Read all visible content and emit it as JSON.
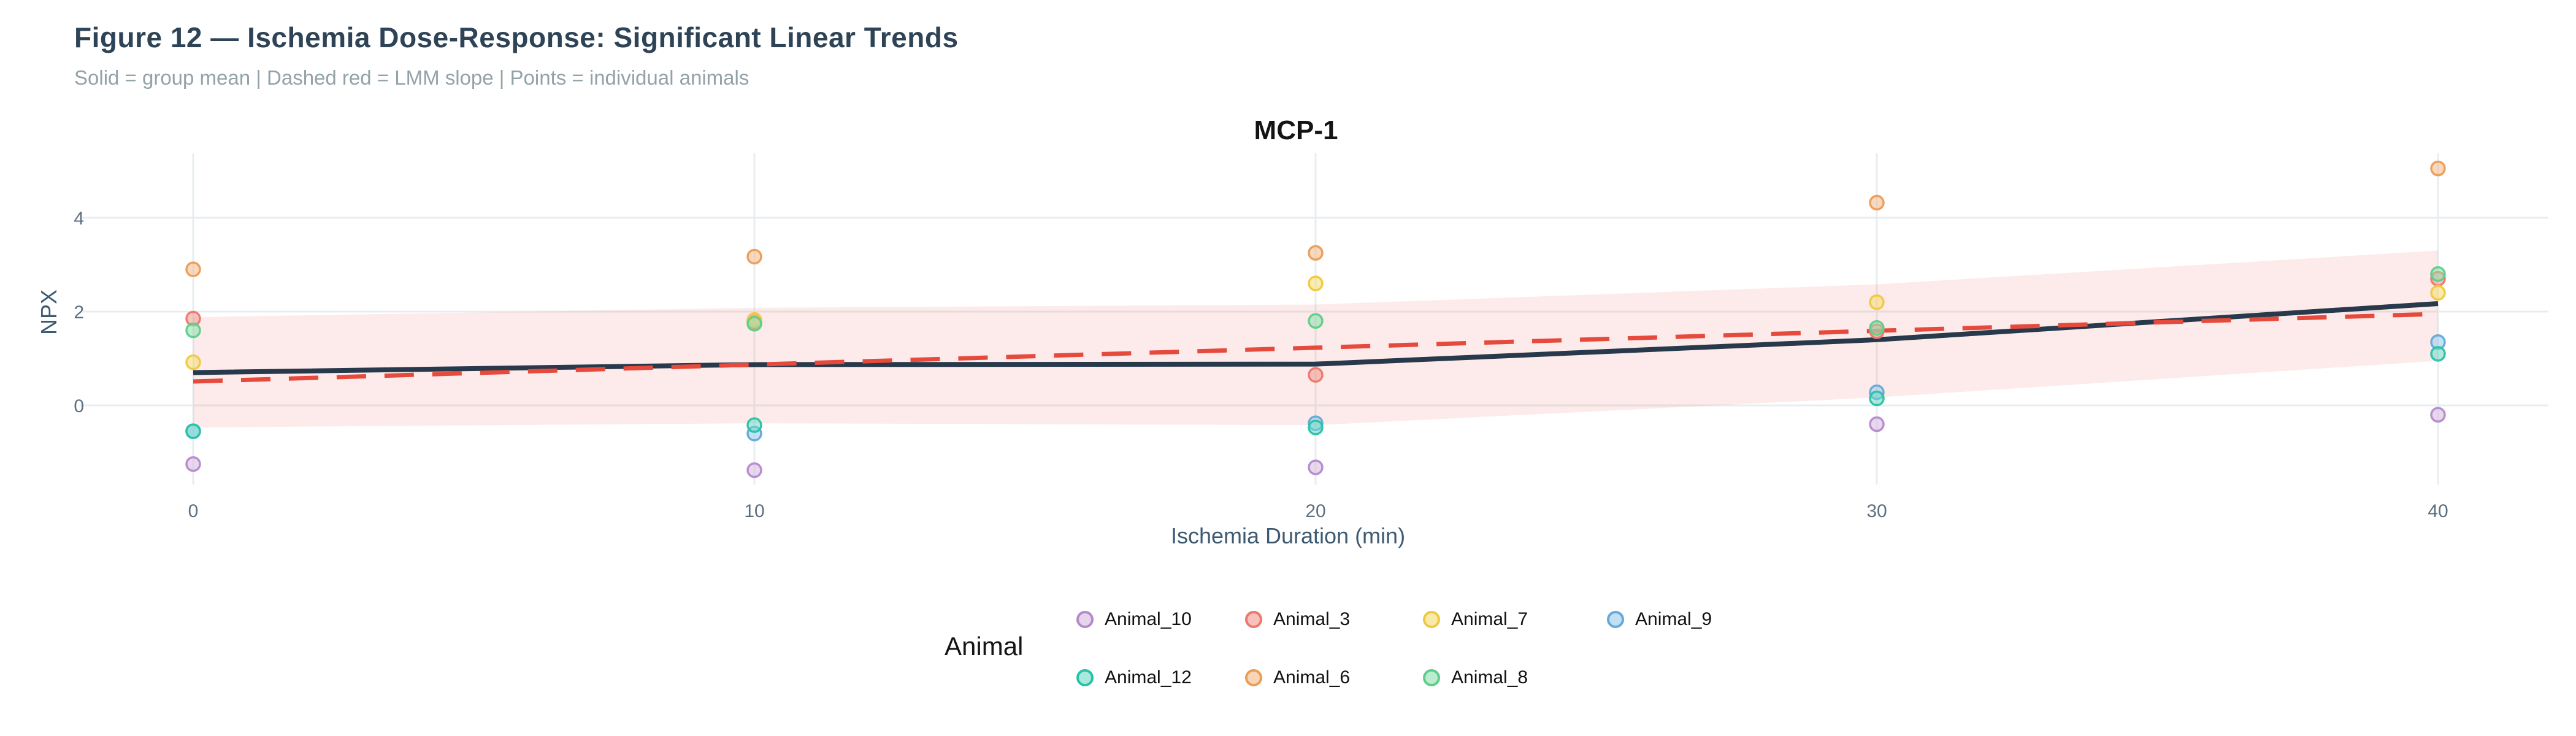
{
  "figure": {
    "title": "Figure 12 — Ischemia Dose-Response: Significant Linear Trends",
    "subtitle": "Solid = group mean | Dashed red = LMM slope | Points = individual animals"
  },
  "panel": {
    "title": "MCP-1"
  },
  "axes": {
    "x": {
      "title": "Ischemia Duration (min)",
      "tick_labels": [
        "0",
        "10",
        "20",
        "30",
        "40"
      ]
    },
    "y": {
      "title": "NPX",
      "tick_labels": [
        "0",
        "2",
        "4"
      ]
    }
  },
  "legend": {
    "title": "Animal",
    "rows": [
      {
        "items": [
          {
            "label": "Animal_10"
          },
          {
            "label": "Animal_3"
          },
          {
            "label": "Animal_7"
          },
          {
            "label": "Animal_9"
          }
        ]
      },
      {
        "items": [
          {
            "label": "Animal_12"
          },
          {
            "label": "Animal_6"
          },
          {
            "label": "Animal_8"
          }
        ]
      }
    ]
  },
  "colors": {
    "figure_title": "#2e4456",
    "subtitle": "#93a1a8",
    "panel_title": "#141414",
    "axis_text": "#5c6f80",
    "axis_title": "#3d5a73",
    "gridline": "#e8edf0",
    "mean_line": "#27394b",
    "lmm_line": "#e64a3c",
    "ribbon": "rgba(231,76,60,0.11)"
  },
  "chart_data": {
    "type": "scatter",
    "title": "MCP-1",
    "xlabel": "Ischemia Duration (min)",
    "ylabel": "NPX",
    "x": [
      0,
      10,
      20,
      30,
      40
    ],
    "x_ticks": [
      0,
      10,
      20,
      30,
      40
    ],
    "y_ticks": [
      0,
      2,
      4
    ],
    "xlim": [
      -2,
      42
    ],
    "ylim": [
      -1.7,
      5.4
    ],
    "grid": true,
    "legend_position": "bottom",
    "point_style": {
      "radius": 11,
      "fill_opacity": 0.55,
      "stroke_width": 3.5
    },
    "series": [
      {
        "name": "Animal_10",
        "fill": "#d5b8e0",
        "stroke": "#b589cc",
        "values": [
          -1.25,
          -1.38,
          -1.32,
          -0.4,
          -0.2
        ]
      },
      {
        "name": "Animal_3",
        "fill": "#f3988e",
        "stroke": "#ee776c",
        "values": [
          1.85,
          1.78,
          0.65,
          1.58,
          2.7
        ]
      },
      {
        "name": "Animal_6",
        "fill": "#f3b987",
        "stroke": "#eb9c57",
        "values": [
          2.9,
          3.17,
          3.25,
          4.32,
          5.05
        ]
      },
      {
        "name": "Animal_7",
        "fill": "#f6dc6f",
        "stroke": "#efc93f",
        "values": [
          0.92,
          1.82,
          2.6,
          2.2,
          2.4
        ]
      },
      {
        "name": "Animal_8",
        "fill": "#8ce0ac",
        "stroke": "#5ecd8b",
        "values": [
          1.6,
          1.74,
          1.8,
          1.65,
          2.8
        ]
      },
      {
        "name": "Animal_9",
        "fill": "#97cbed",
        "stroke": "#64a9d8",
        "values": [
          -0.55,
          -0.6,
          -0.38,
          0.28,
          1.35
        ]
      },
      {
        "name": "Animal_12",
        "fill": "#6fd8c4",
        "stroke": "#29c1a7",
        "values": [
          -0.55,
          -0.42,
          -0.47,
          0.15,
          1.1
        ]
      }
    ],
    "group_mean_line": {
      "name": "group mean",
      "values": [
        0.7,
        0.87,
        0.88,
        1.4,
        2.17
      ]
    },
    "lmm_slope_line": {
      "name": "LMM slope",
      "values": [
        0.51,
        0.87,
        1.23,
        1.59,
        1.95
      ]
    },
    "ci_ribbon": {
      "upper": [
        1.88,
        2.08,
        2.15,
        2.58,
        3.3
      ],
      "lower": [
        -0.47,
        -0.38,
        -0.42,
        0.17,
        0.95
      ]
    }
  }
}
